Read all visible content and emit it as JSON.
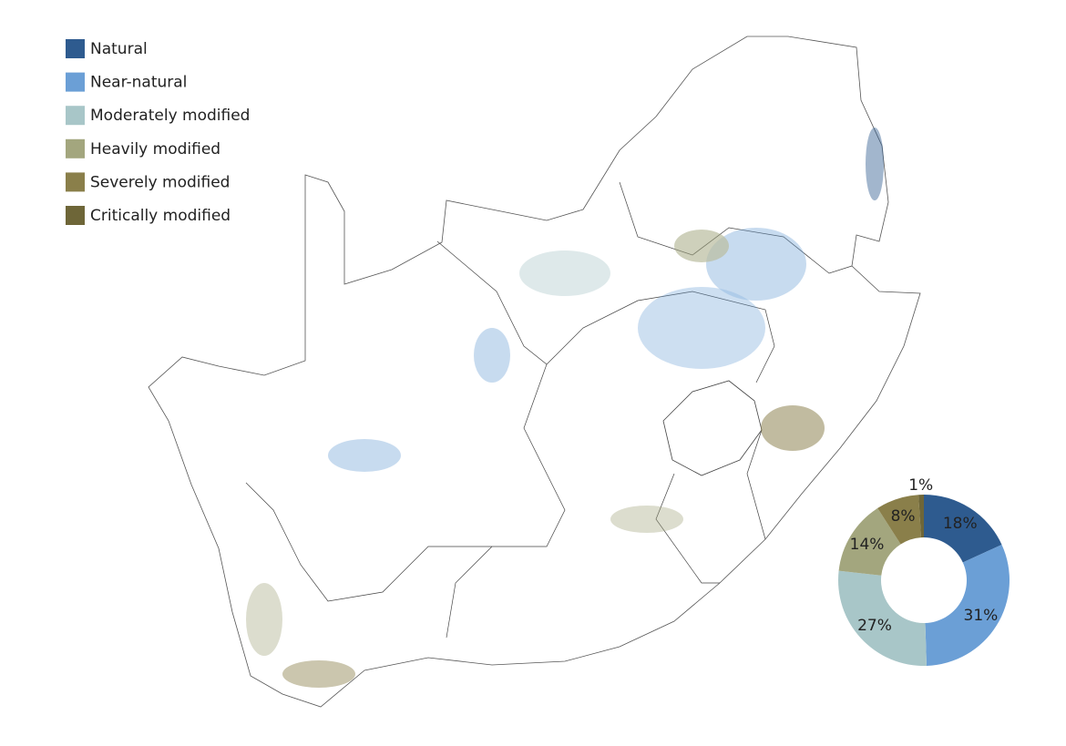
{
  "chart_data": {
    "type": "pie",
    "donut": true,
    "categories": [
      "Natural",
      "Near-natural",
      "Moderately modified",
      "Heavily modified",
      "Severely modified",
      "Critically modified"
    ],
    "colors": [
      "#2e5b8f",
      "#6b9fd6",
      "#a8c6c8",
      "#a3a67e",
      "#8a7f4a",
      "#6e6638"
    ],
    "values": [
      18,
      31,
      27,
      14,
      8,
      1
    ],
    "value_labels": [
      "18%",
      "31%",
      "27%",
      "14%",
      "8%",
      "1%"
    ],
    "legend": "top-left"
  }
}
